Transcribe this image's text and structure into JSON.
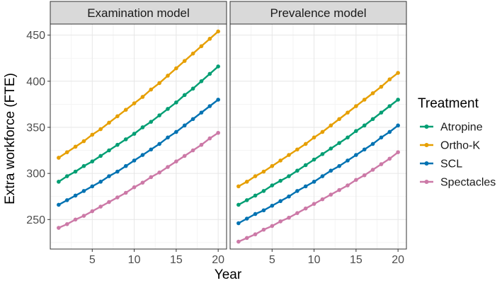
{
  "chart_data": {
    "type": "line",
    "ylabel": "Extra workforce (FTE)",
    "xlabel": "Year",
    "xlim": [
      0,
      21
    ],
    "ylim": [
      218,
      462
    ],
    "x_ticks": [
      5,
      10,
      15,
      20
    ],
    "y_ticks": [
      250,
      300,
      350,
      400,
      450
    ],
    "x": [
      1,
      2,
      3,
      4,
      5,
      6,
      7,
      8,
      9,
      10,
      11,
      12,
      13,
      14,
      15,
      16,
      17,
      18,
      19,
      20
    ],
    "legend": {
      "title": "Treatment",
      "position": "right",
      "entries": [
        "Atropine",
        "Ortho-K",
        "SCL",
        "Spectacles"
      ]
    },
    "colors": {
      "Atropine": "#009E73",
      "Ortho-K": "#E69F00",
      "SCL": "#0072B2",
      "Spectacles": "#CC79A7"
    },
    "facets": [
      {
        "title": "Examination model",
        "series": [
          {
            "name": "Atropine",
            "values": [
              291,
              297,
              302,
              308,
              313,
              319,
              325,
              331,
              337,
              343,
              350,
              356,
              363,
              370,
              377,
              385,
              392,
              400,
              408,
              416
            ]
          },
          {
            "name": "Ortho-K",
            "values": [
              317,
              323,
              329,
              335,
              342,
              348,
              355,
              362,
              369,
              376,
              383,
              391,
              398,
              406,
              414,
              422,
              430,
              438,
              446,
              454
            ]
          },
          {
            "name": "SCL",
            "values": [
              266,
              271,
              276,
              281,
              286,
              291,
              297,
              302,
              308,
              314,
              320,
              326,
              332,
              339,
              345,
              352,
              359,
              366,
              373,
              380
            ]
          },
          {
            "name": "Spectacles",
            "values": [
              241,
              245,
              250,
              254,
              259,
              264,
              269,
              274,
              279,
              285,
              290,
              296,
              301,
              307,
              313,
              319,
              325,
              331,
              338,
              344
            ]
          }
        ]
      },
      {
        "title": "Prevalence model",
        "series": [
          {
            "name": "Atropine",
            "values": [
              266,
              271,
              276,
              281,
              287,
              292,
              297,
              303,
              309,
              315,
              321,
              327,
              333,
              339,
              346,
              352,
              359,
              366,
              373,
              380
            ]
          },
          {
            "name": "Ortho-K",
            "values": [
              286,
              291,
              297,
              302,
              308,
              314,
              320,
              326,
              332,
              339,
              345,
              352,
              359,
              366,
              373,
              380,
              387,
              394,
              402,
              409
            ]
          },
          {
            "name": "SCL",
            "values": [
              246,
              251,
              256,
              260,
              265,
              270,
              275,
              281,
              286,
              291,
              297,
              303,
              308,
              314,
              320,
              326,
              332,
              339,
              345,
              352
            ]
          },
          {
            "name": "Spectacles",
            "values": [
              226,
              230,
              234,
              239,
              243,
              248,
              252,
              257,
              262,
              267,
              272,
              277,
              282,
              287,
              293,
              298,
              304,
              310,
              316,
              323
            ]
          }
        ]
      }
    ]
  }
}
